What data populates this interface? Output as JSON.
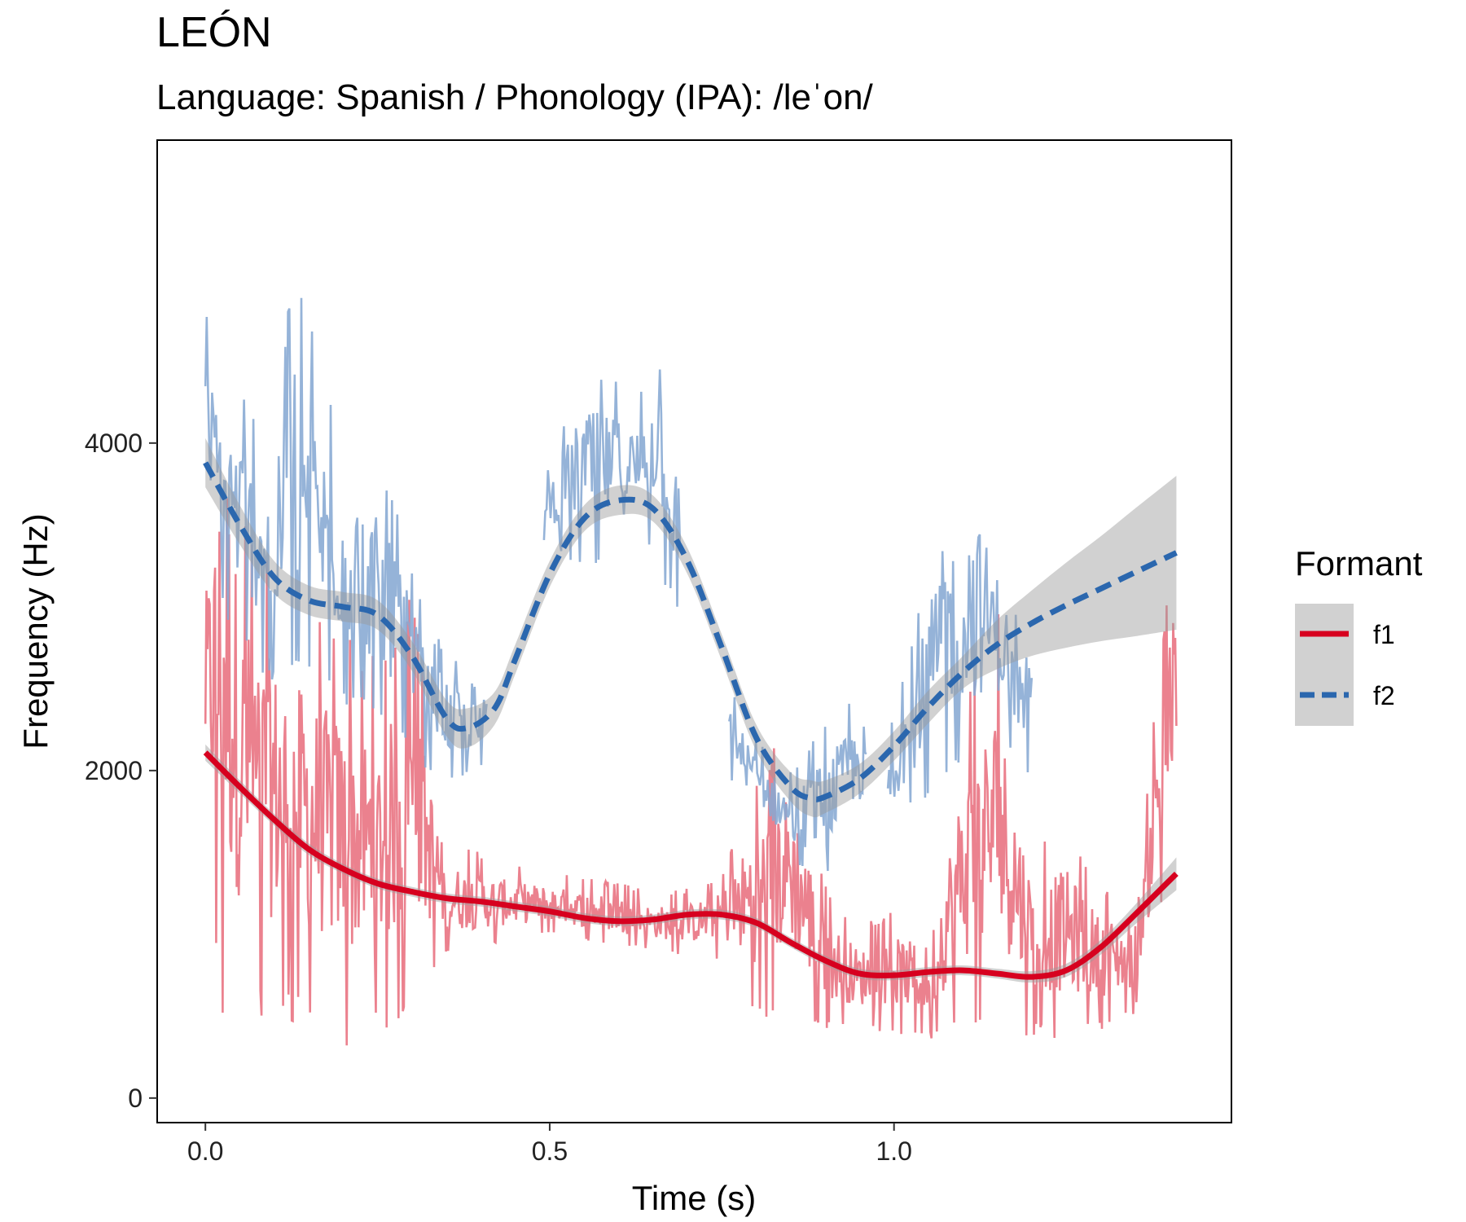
{
  "chart_data": {
    "type": "line",
    "title": "LEÓN",
    "subtitle": "Language: Spanish / Phonology (IPA): /leˈon/",
    "xlabel": "Time (s)",
    "ylabel": "Frequency (Hz)",
    "xlim": [
      -0.07,
      1.49
    ],
    "ylim": [
      -150,
      5850
    ],
    "x_ticks": [
      0.0,
      0.5,
      1.0
    ],
    "x_tick_labels": [
      "0.0",
      "0.5",
      "1.0"
    ],
    "y_ticks": [
      0,
      2000,
      4000
    ],
    "y_tick_labels": [
      "0",
      "2000",
      "4000"
    ],
    "grid": false,
    "legend": {
      "title": "Formant",
      "position": "right",
      "entries": [
        "f1",
        "f2"
      ]
    },
    "series": [
      {
        "name": "f1",
        "raw_color": "#E8707E",
        "smooth_color": "#D7001F",
        "line_style": "solid",
        "smooth": {
          "x": [
            0.0,
            0.05,
            0.1,
            0.15,
            0.2,
            0.25,
            0.3,
            0.35,
            0.4,
            0.45,
            0.5,
            0.55,
            0.6,
            0.65,
            0.7,
            0.75,
            0.8,
            0.85,
            0.9,
            0.95,
            1.0,
            1.05,
            1.1,
            1.15,
            1.2,
            1.25,
            1.3,
            1.35,
            1.41
          ],
          "y": [
            2110,
            1900,
            1700,
            1520,
            1400,
            1310,
            1260,
            1220,
            1200,
            1170,
            1140,
            1100,
            1080,
            1090,
            1120,
            1120,
            1070,
            950,
            840,
            760,
            750,
            770,
            780,
            760,
            740,
            780,
            920,
            1120,
            1370
          ],
          "band": [
            50,
            40,
            35,
            35,
            30,
            30,
            30,
            30,
            30,
            30,
            30,
            30,
            30,
            30,
            30,
            30,
            30,
            30,
            30,
            30,
            30,
            30,
            30,
            30,
            35,
            40,
            45,
            60,
            100
          ]
        },
        "raw_envelope": {
          "x": [
            0.0,
            0.03,
            0.05,
            0.08,
            0.12,
            0.16,
            0.2,
            0.25,
            0.3,
            0.35,
            0.4,
            0.45,
            0.5,
            0.55,
            0.6,
            0.65,
            0.7,
            0.75,
            0.8,
            0.85,
            0.9,
            0.95,
            1.0,
            1.05,
            1.1,
            1.15,
            1.2,
            1.25,
            1.3,
            1.35,
            1.41
          ],
          "upper": [
            3500,
            5200,
            3700,
            3400,
            3200,
            3000,
            2900,
            2700,
            3100,
            1600,
            1500,
            1430,
            1380,
            1350,
            1320,
            1250,
            1280,
            1370,
            2000,
            2300,
            1300,
            1050,
            1150,
            1100,
            2400,
            3000,
            1600,
            1700,
            1300,
            1250,
            3600
          ],
          "lower": [
            1500,
            200,
            500,
            450,
            450,
            420,
            300,
            350,
            550,
            850,
            900,
            950,
            1000,
            950,
            920,
            900,
            850,
            850,
            480,
            500,
            420,
            420,
            400,
            350,
            380,
            400,
            380,
            340,
            420,
            500,
            1500
          ]
        }
      },
      {
        "name": "f2",
        "raw_color": "#86A9D3",
        "smooth_color": "#2B67AE",
        "line_style": "dashed",
        "smooth": {
          "x": [
            0.0,
            0.05,
            0.1,
            0.15,
            0.2,
            0.25,
            0.3,
            0.35,
            0.38,
            0.42,
            0.45,
            0.5,
            0.55,
            0.6,
            0.65,
            0.7,
            0.75,
            0.8,
            0.85,
            0.88,
            0.9,
            0.95,
            1.0,
            1.05,
            1.1,
            1.15,
            1.2,
            1.25,
            1.3,
            1.35,
            1.41
          ],
          "y": [
            3880,
            3500,
            3180,
            3040,
            3000,
            2950,
            2700,
            2320,
            2260,
            2380,
            2680,
            3200,
            3540,
            3650,
            3600,
            3280,
            2750,
            2200,
            1900,
            1830,
            1840,
            1950,
            2150,
            2390,
            2600,
            2770,
            2900,
            3010,
            3110,
            3210,
            3330
          ],
          "band": [
            150,
            120,
            100,
            90,
            90,
            90,
            90,
            110,
            120,
            100,
            90,
            80,
            80,
            90,
            80,
            80,
            80,
            80,
            90,
            110,
            100,
            90,
            90,
            100,
            100,
            150,
            200,
            260,
            320,
            390,
            470
          ]
        },
        "raw_envelope": {
          "x": [
            0.0,
            0.03,
            0.06,
            0.1,
            0.13,
            0.17,
            0.2,
            0.24,
            0.28,
            0.32,
            0.36,
            0.4,
            0.5,
            0.55,
            0.6,
            0.63,
            0.66,
            0.68,
            0.75,
            0.8,
            0.85,
            0.9,
            0.95,
            1.0,
            1.05,
            1.08,
            1.12,
            1.15,
            1.2
          ],
          "upper": [
            4800,
            4500,
            4300,
            4100,
            5200,
            4400,
            4200,
            4000,
            3600,
            2900,
            2700,
            2500,
            3900,
            4500,
            4400,
            4300,
            5100,
            4200,
            2600,
            2200,
            2000,
            2300,
            2500,
            2300,
            3300,
            4000,
            4000,
            3500,
            2600
          ],
          "lower": [
            3300,
            2900,
            2700,
            2500,
            2500,
            2500,
            2400,
            2300,
            2200,
            2000,
            1900,
            2000,
            3400,
            3200,
            3300,
            3400,
            3200,
            3000,
            2000,
            1700,
            1400,
            1300,
            1600,
            1700,
            1800,
            1900,
            2000,
            2200,
            1900
          ]
        }
      }
    ]
  }
}
